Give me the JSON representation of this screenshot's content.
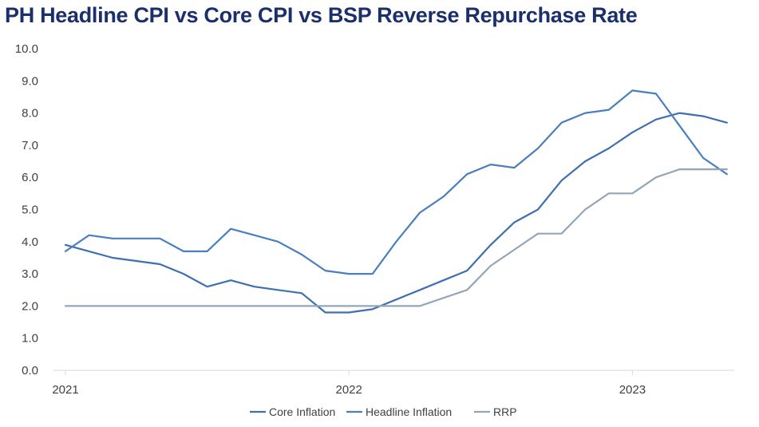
{
  "chart_data": {
    "type": "line",
    "title": "PH Headline CPI vs Core CPI vs BSP Reverse Repurchase Rate",
    "ylim": [
      0,
      10
    ],
    "yticks": [
      "0.0",
      "1.0",
      "2.0",
      "3.0",
      "4.0",
      "5.0",
      "6.0",
      "7.0",
      "8.0",
      "9.0",
      "10.0"
    ],
    "xticks": [
      {
        "label": "2021",
        "at": "2021-01"
      },
      {
        "label": "2022",
        "at": "2022-01"
      },
      {
        "label": "2023",
        "at": "2023-01"
      }
    ],
    "x": [
      "2021-01",
      "2021-02",
      "2021-03",
      "2021-04",
      "2021-05",
      "2021-06",
      "2021-07",
      "2021-08",
      "2021-09",
      "2021-10",
      "2021-11",
      "2021-12",
      "2022-01",
      "2022-02",
      "2022-03",
      "2022-04",
      "2022-05",
      "2022-06",
      "2022-07",
      "2022-08",
      "2022-09",
      "2022-10",
      "2022-11",
      "2022-12",
      "2023-01",
      "2023-02",
      "2023-03",
      "2023-04",
      "2023-05"
    ],
    "grid": false,
    "legend_position": "bottom",
    "series": [
      {
        "name": "Core Inflation",
        "color": "#3d6fb1",
        "values": [
          3.9,
          3.7,
          3.5,
          3.4,
          3.3,
          3.0,
          2.6,
          2.8,
          2.6,
          2.5,
          2.4,
          1.8,
          1.8,
          1.9,
          2.2,
          2.5,
          2.8,
          3.1,
          3.9,
          4.6,
          5.0,
          5.9,
          6.5,
          6.9,
          7.4,
          7.8,
          8.0,
          7.9,
          7.7
        ]
      },
      {
        "name": "Headline Inflation",
        "color": "#4b7ebf",
        "values": [
          3.7,
          4.2,
          4.1,
          4.1,
          4.1,
          3.7,
          3.7,
          4.4,
          4.2,
          4.0,
          3.6,
          3.1,
          3.0,
          3.0,
          4.0,
          4.9,
          5.4,
          6.1,
          6.4,
          6.3,
          6.9,
          7.7,
          8.0,
          8.1,
          8.7,
          8.6,
          7.6,
          6.6,
          6.1
        ]
      },
      {
        "name": "RRP",
        "color": "#95a5b8",
        "values": [
          2.0,
          2.0,
          2.0,
          2.0,
          2.0,
          2.0,
          2.0,
          2.0,
          2.0,
          2.0,
          2.0,
          2.0,
          2.0,
          2.0,
          2.0,
          2.0,
          2.25,
          2.5,
          3.25,
          3.75,
          4.25,
          4.25,
          5.0,
          5.5,
          5.5,
          6.0,
          6.25,
          6.25,
          6.25
        ]
      }
    ]
  }
}
